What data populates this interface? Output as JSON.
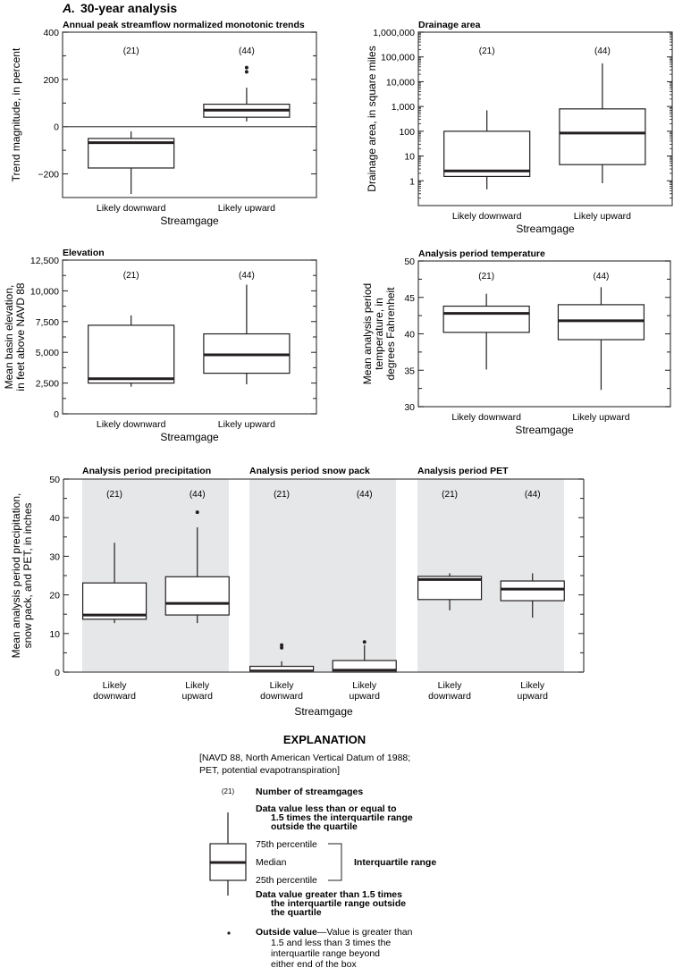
{
  "figure": {
    "panel_letter": "A.",
    "panel_title": "30-year analysis"
  },
  "chart_data": [
    {
      "id": "trend",
      "type": "boxplot",
      "title": "Annual peak streamflow normalized monotonic trends",
      "xlabel": "Streamgage",
      "ylabel": "Trend magnitude, in percent",
      "yscale": "linear",
      "ylim": [
        -300,
        400
      ],
      "yticks": [
        400,
        200,
        0,
        -200
      ],
      "ytick_labels": [
        "400",
        "200",
        "0",
        "−200"
      ],
      "minor_yticks": [
        300,
        100,
        -100
      ],
      "zero_line": true,
      "categories": [
        "Likely downward",
        "Likely upward"
      ],
      "counts": [
        "(21)",
        "(44)"
      ],
      "boxes": [
        {
          "whisker_low": -285,
          "q1": -175,
          "median": -68,
          "q3": -50,
          "whisker_high": -20,
          "outliers": []
        },
        {
          "whisker_low": 22,
          "q1": 40,
          "median": 70,
          "q3": 95,
          "whisker_high": 165,
          "outliers": [
            232,
            250
          ]
        }
      ]
    },
    {
      "id": "drainage",
      "type": "boxplot",
      "title": "Drainage area",
      "xlabel": "Streamgage",
      "ylabel": "Drainage area, in square miles",
      "yscale": "log",
      "ylim": [
        0.1,
        1000000
      ],
      "yticks": [
        1000000,
        100000,
        10000,
        1000,
        100,
        10,
        1
      ],
      "ytick_labels": [
        "1,000,000",
        "100,000",
        "10,000",
        "1,000",
        "100",
        "10",
        "1"
      ],
      "categories": [
        "Likely downward",
        "Likely upward"
      ],
      "counts": [
        "(21)",
        "(44)"
      ],
      "boxes": [
        {
          "whisker_low": 0.45,
          "q1": 1.5,
          "median": 2.5,
          "q3": 100,
          "whisker_high": 700,
          "outliers": []
        },
        {
          "whisker_low": 0.8,
          "q1": 4.5,
          "median": 85,
          "q3": 800,
          "whisker_high": 55000,
          "outliers": []
        }
      ]
    },
    {
      "id": "elevation",
      "type": "boxplot",
      "title": "Elevation",
      "xlabel": "Streamgage",
      "ylabel": [
        "Mean basin elevation,",
        "in feet above NAVD 88"
      ],
      "yscale": "linear",
      "ylim": [
        0,
        12500
      ],
      "yticks": [
        12500,
        10000,
        7500,
        5000,
        2500,
        0
      ],
      "ytick_labels": [
        "12,500",
        "10,000",
        "7,500",
        "5,000",
        "2,500",
        "0"
      ],
      "minor_yticks": [
        11250,
        8750,
        6250,
        3750,
        1250
      ],
      "categories": [
        "Likely downward",
        "Likely upward"
      ],
      "counts": [
        "(21)",
        "(44)"
      ],
      "boxes": [
        {
          "whisker_low": 2200,
          "q1": 2500,
          "median": 2850,
          "q3": 7200,
          "whisker_high": 8000,
          "outliers": []
        },
        {
          "whisker_low": 2400,
          "q1": 3300,
          "median": 4800,
          "q3": 6500,
          "whisker_high": 10500,
          "outliers": []
        }
      ]
    },
    {
      "id": "temperature",
      "type": "boxplot",
      "title": "Analysis period temperature",
      "xlabel": "Streamgage",
      "ylabel": [
        "Mean analysis period",
        "temperature, in",
        "degrees Fahrenheit"
      ],
      "yscale": "linear",
      "ylim": [
        30,
        50
      ],
      "yticks": [
        50,
        45,
        40,
        35,
        30
      ],
      "ytick_labels": [
        "50",
        "45",
        "40",
        "35",
        "30"
      ],
      "minor_yticks": [
        47.5,
        42.5,
        37.5,
        32.5
      ],
      "categories": [
        "Likely downward",
        "Likely upward"
      ],
      "counts": [
        "(21)",
        "(44)"
      ],
      "boxes": [
        {
          "whisker_low": 35.1,
          "q1": 40.2,
          "median": 42.8,
          "q3": 43.8,
          "whisker_high": 45.5,
          "outliers": []
        },
        {
          "whisker_low": 32.3,
          "q1": 39.2,
          "median": 41.8,
          "q3": 44.0,
          "whisker_high": 46.4,
          "outliers": []
        }
      ]
    },
    {
      "id": "climate",
      "type": "boxplot",
      "xlabel": "Streamgage",
      "ylabel": [
        "Mean analysis period precipitation,",
        "snow pack, and PET, in inches"
      ],
      "yscale": "linear",
      "ylim": [
        0,
        50
      ],
      "yticks": [
        50,
        40,
        30,
        20,
        10,
        0
      ],
      "ytick_labels": [
        "50",
        "40",
        "30",
        "20",
        "10",
        "0"
      ],
      "minor_yticks": [
        45,
        35,
        25,
        15,
        5
      ],
      "groups": [
        {
          "title": "Analysis period precipitation",
          "categories": [
            "Likely\ndownward",
            "Likely\nupward"
          ],
          "counts": [
            "(21)",
            "(44)"
          ],
          "boxes": [
            {
              "whisker_low": 12.7,
              "q1": 13.7,
              "median": 14.8,
              "q3": 23.1,
              "whisker_high": 33.5,
              "outliers": []
            },
            {
              "whisker_low": 12.7,
              "q1": 14.8,
              "median": 17.8,
              "q3": 24.7,
              "whisker_high": 37.5,
              "outliers": [
                41.4
              ]
            }
          ]
        },
        {
          "title": "Analysis period snow pack",
          "categories": [
            "Likely\ndownward",
            "Likely\nupward"
          ],
          "counts": [
            "(21)",
            "(44)"
          ],
          "boxes": [
            {
              "whisker_low": 0,
              "q1": 0.1,
              "median": 0.3,
              "q3": 1.5,
              "whisker_high": 2.8,
              "outliers": [
                6.3,
                7.0
              ]
            },
            {
              "whisker_low": 0,
              "q1": 0,
              "median": 0.5,
              "q3": 3.0,
              "whisker_high": 7.0,
              "outliers": [
                7.8
              ]
            }
          ]
        },
        {
          "title": "Analysis period PET",
          "categories": [
            "Likely\ndownward",
            "Likely\nupward"
          ],
          "counts": [
            "(21)",
            "(44)"
          ],
          "boxes": [
            {
              "whisker_low": 16.0,
              "q1": 18.8,
              "median": 24.0,
              "q3": 24.8,
              "whisker_high": 25.6,
              "outliers": []
            },
            {
              "whisker_low": 14.1,
              "q1": 18.5,
              "median": 21.5,
              "q3": 23.6,
              "whisker_high": 25.6,
              "outliers": []
            }
          ]
        }
      ]
    }
  ],
  "explanation": {
    "heading": "EXPLANATION",
    "note_line1": "[NAVD 88, North American Vertical Datum of 1988;",
    "note_line2": "PET, potential evapotranspiration]",
    "count_symbol": "(21)",
    "count_label": "Number of streamgages",
    "upper_whisker": [
      "Data value less than or equal to",
      "1.5 times the interquartile range",
      "outside the quartile"
    ],
    "p75": "75th percentile",
    "median": "Median",
    "p25": "25th percentile",
    "iqr_label": "Interquartile range",
    "lower_whisker": [
      "Data value greater than 1.5 times",
      "the interquartile range outside",
      "the quartile"
    ],
    "outside_bold": "Outside value",
    "outside_text": [
      "—Value is greater than",
      "1.5 and less than 3 times the",
      "interquartile range beyond",
      "either end of the box"
    ]
  }
}
